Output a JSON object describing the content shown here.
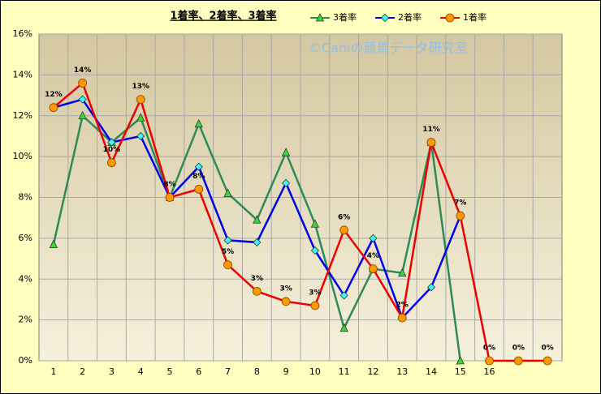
{
  "chart_data": {
    "type": "line",
    "title": "1着率、2着率、3着率",
    "annotation": "©Caniの競馬データ研究室",
    "categories": [
      "1",
      "2",
      "3",
      "4",
      "5",
      "6",
      "7",
      "8",
      "9",
      "10",
      "11",
      "12",
      "13",
      "14",
      "15",
      "16",
      null,
      null
    ],
    "series": [
      {
        "name": "3着率",
        "color": "#2e8b57",
        "marker": "triangle",
        "marker_color": "#33dd33",
        "values": [
          5.7,
          12.0,
          10.7,
          11.9,
          8.0,
          11.6,
          8.2,
          6.9,
          10.2,
          6.7,
          1.6,
          4.5,
          4.3,
          10.7,
          0,
          null,
          null,
          null
        ]
      },
      {
        "name": "2着率",
        "color": "#0000ee",
        "marker": "diamond",
        "marker_color": "#33ffff",
        "values": [
          12.4,
          12.8,
          10.7,
          11.0,
          8.0,
          9.5,
          5.9,
          5.8,
          8.7,
          5.4,
          3.2,
          6.0,
          2.1,
          3.6,
          7.1,
          null,
          null,
          null
        ]
      },
      {
        "name": "1着率",
        "color": "#ee0000",
        "marker": "circle",
        "marker_color": "#ff9900",
        "values": [
          12.4,
          13.6,
          9.7,
          12.8,
          8.0,
          8.4,
          4.7,
          3.4,
          2.9,
          2.7,
          6.4,
          4.5,
          2.1,
          10.7,
          7.1,
          0,
          0,
          0
        ],
        "value_labels": [
          "12%",
          "14%",
          "10%",
          "13%",
          "8%",
          "8%",
          "5%",
          "3%",
          "3%",
          "3%",
          "6%",
          "4%",
          "2%",
          "11%",
          "7%",
          "0%",
          "0%",
          "0%"
        ]
      }
    ],
    "ylim": [
      0,
      16
    ],
    "yticks": [
      {
        "value": 0,
        "label": "0%"
      },
      {
        "value": 2,
        "label": "2%"
      },
      {
        "value": 4,
        "label": "4%"
      },
      {
        "value": 6,
        "label": "6%"
      },
      {
        "value": 8,
        "label": "8%"
      },
      {
        "value": 10,
        "label": "10%"
      },
      {
        "value": 12,
        "label": "12%"
      },
      {
        "value": 14,
        "label": "14%"
      },
      {
        "value": 16,
        "label": "16%"
      }
    ],
    "grid": true,
    "legend": "top"
  }
}
